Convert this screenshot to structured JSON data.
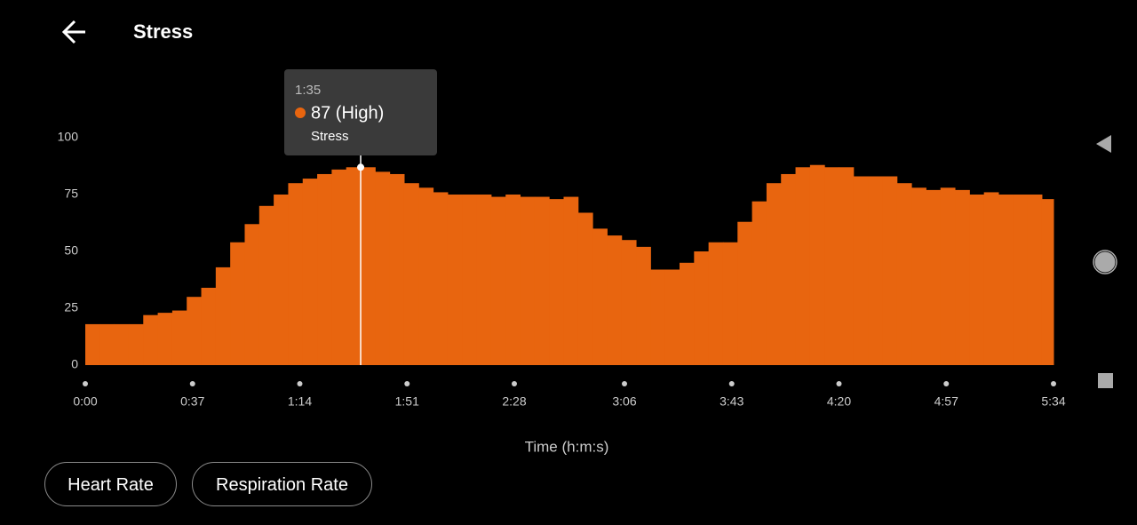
{
  "header": {
    "title": "Stress"
  },
  "chart_data": {
    "type": "step-area",
    "xlabel": "Time (h:m:s)",
    "x": [
      0,
      5,
      10,
      15,
      20,
      25,
      30,
      35,
      40,
      45,
      50,
      55,
      60,
      65,
      70,
      75,
      80,
      85,
      90,
      95,
      100,
      105,
      110,
      115,
      120,
      125,
      130,
      135,
      140,
      145,
      150,
      155,
      160,
      165,
      170,
      175,
      180,
      185,
      190,
      195,
      200,
      205,
      210,
      215,
      220,
      225,
      230,
      235,
      240,
      245,
      250,
      255,
      260,
      265,
      270,
      275,
      280,
      285,
      290,
      295,
      300,
      305,
      310,
      315,
      320,
      325,
      330
    ],
    "series": [
      {
        "name": "Stress",
        "color": "#e8650f",
        "values": [
          18,
          18,
          18,
          18,
          22,
          23,
          24,
          30,
          34,
          43,
          54,
          62,
          70,
          75,
          80,
          82,
          84,
          86,
          87,
          87,
          85,
          84,
          80,
          78,
          76,
          75,
          75,
          75,
          74,
          75,
          74,
          74,
          73,
          74,
          67,
          60,
          57,
          55,
          52,
          42,
          42,
          45,
          50,
          54,
          54,
          63,
          72,
          80,
          84,
          87,
          88,
          87,
          87,
          83,
          83,
          83,
          80,
          78,
          77,
          78,
          77,
          75,
          76,
          75,
          75,
          75,
          73
        ]
      }
    ],
    "xlim": [
      0,
      334
    ],
    "xticks": [
      {
        "value": 0,
        "label": "0:00"
      },
      {
        "value": 37,
        "label": "0:37"
      },
      {
        "value": 74,
        "label": "1:14"
      },
      {
        "value": 111,
        "label": "1:51"
      },
      {
        "value": 148,
        "label": "2:28"
      },
      {
        "value": 186,
        "label": "3:06"
      },
      {
        "value": 223,
        "label": "3:43"
      },
      {
        "value": 260,
        "label": "4:20"
      },
      {
        "value": 297,
        "label": "4:57"
      },
      {
        "value": 334,
        "label": "5:34"
      }
    ],
    "ylim": [
      0,
      100
    ],
    "yticks": [
      0,
      25,
      50,
      75,
      100
    ],
    "tooltip": {
      "x": {
        "value": 95,
        "label": "1:35"
      },
      "y": {
        "value": 87,
        "label": "87 (High)"
      },
      "series": "Stress"
    }
  },
  "buttons": [
    "Heart Rate",
    "Respiration Rate"
  ]
}
